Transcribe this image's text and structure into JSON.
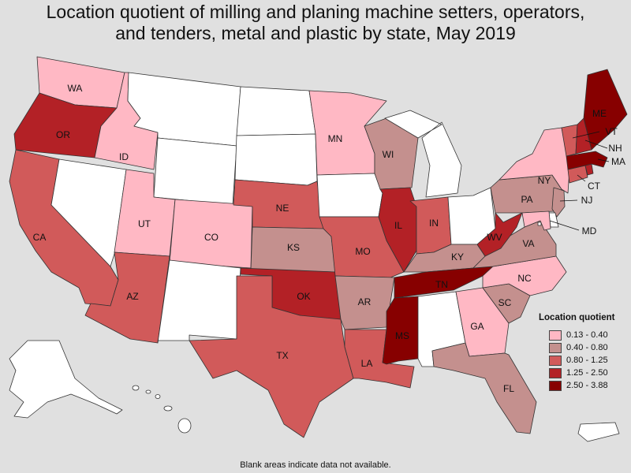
{
  "title": {
    "line1": "Location quotient of milling and planing machine setters, operators,",
    "line2": "and tenders, metal and plastic by state, May 2019"
  },
  "legend": {
    "title": "Location quotient",
    "items": [
      {
        "label": "0.13 - 0.40",
        "color": "#ffb8c4"
      },
      {
        "label": "0.40 - 0.80",
        "color": "#c4908e"
      },
      {
        "label": "0.80 - 1.25",
        "color": "#d15a5a"
      },
      {
        "label": "1.25 - 2.50",
        "color": "#b32126"
      },
      {
        "label": "2.50 - 3.88",
        "color": "#870000"
      }
    ]
  },
  "blank_color": "#ffffff",
  "states": {
    "WA": {
      "label": "WA",
      "class": 0
    },
    "OR": {
      "label": "OR",
      "class": 3
    },
    "CA": {
      "label": "CA",
      "class": 2
    },
    "ID": {
      "label": "ID",
      "class": 0
    },
    "NV": {
      "label": "",
      "class": null
    },
    "MT": {
      "label": "",
      "class": null
    },
    "WY": {
      "label": "",
      "class": null
    },
    "UT": {
      "label": "UT",
      "class": 0
    },
    "AZ": {
      "label": "AZ",
      "class": 2
    },
    "CO": {
      "label": "CO",
      "class": 0
    },
    "NM": {
      "label": "",
      "class": null
    },
    "ND": {
      "label": "",
      "class": null
    },
    "SD": {
      "label": "",
      "class": null
    },
    "NE": {
      "label": "NE",
      "class": 2
    },
    "KS": {
      "label": "KS",
      "class": 1
    },
    "OK": {
      "label": "OK",
      "class": 3
    },
    "TX": {
      "label": "TX",
      "class": 2
    },
    "MN": {
      "label": "MN",
      "class": 0
    },
    "IA": {
      "label": "",
      "class": null
    },
    "MO": {
      "label": "MO",
      "class": 2
    },
    "AR": {
      "label": "AR",
      "class": 1
    },
    "LA": {
      "label": "LA",
      "class": 2
    },
    "WI": {
      "label": "WI",
      "class": 1
    },
    "IL": {
      "label": "IL",
      "class": 3
    },
    "MI": {
      "label": "",
      "class": null
    },
    "IN": {
      "label": "IN",
      "class": 2
    },
    "OH": {
      "label": "",
      "class": null
    },
    "KY": {
      "label": "KY",
      "class": 1
    },
    "TN": {
      "label": "TN",
      "class": 4
    },
    "MS": {
      "label": "MS",
      "class": 4
    },
    "AL": {
      "label": "",
      "class": null
    },
    "GA": {
      "label": "GA",
      "class": 0
    },
    "FL": {
      "label": "FL",
      "class": 1
    },
    "SC": {
      "label": "SC",
      "class": 1
    },
    "NC": {
      "label": "NC",
      "class": 0
    },
    "VA": {
      "label": "VA",
      "class": 1
    },
    "WV": {
      "label": "WV",
      "class": 3
    },
    "PA": {
      "label": "PA",
      "class": 1
    },
    "NY": {
      "label": "NY",
      "class": 0
    },
    "VT": {
      "label": "VT",
      "class": 2
    },
    "NH": {
      "label": "NH",
      "class": 3
    },
    "ME": {
      "label": "ME",
      "class": 4
    },
    "MA": {
      "label": "MA",
      "class": 4
    },
    "CT": {
      "label": "CT",
      "class": 2
    },
    "RI": {
      "label": "",
      "class": 3
    },
    "NJ": {
      "label": "NJ",
      "class": 1
    },
    "DE": {
      "label": "",
      "class": null
    },
    "MD": {
      "label": "MD",
      "class": 0
    },
    "DC": {
      "label": "",
      "class": null
    },
    "AK": {
      "label": "",
      "class": null
    },
    "HI": {
      "label": "",
      "class": null
    },
    "PR": {
      "label": "",
      "class": null
    }
  },
  "footnote": "Blank areas indicate data not available."
}
